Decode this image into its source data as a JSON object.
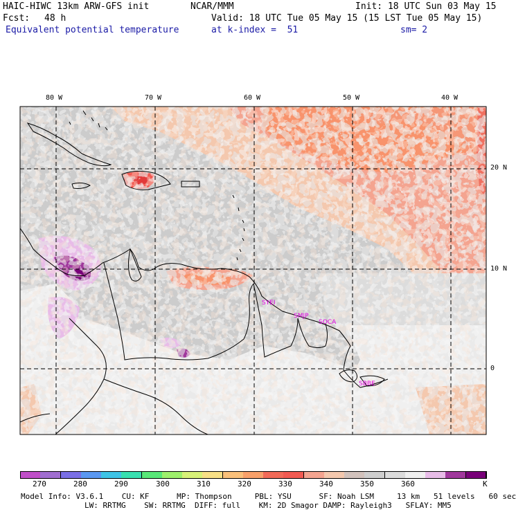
{
  "header": {
    "model": "HAIC-HIWC 13km ARW-GFS init",
    "org": "NCAR/MMM",
    "init": "Init: 18 UTC Sun 03 May 15",
    "fcst_label": "Fcst:",
    "fcst_value": "48 h",
    "valid": "Valid: 18 UTC Tue 05 May 15 (15 LST Tue 05 May 15)",
    "field": "Equivalent potential temperature",
    "level": "at k-index =  51",
    "smooth": "sm= 2"
  },
  "map": {
    "lon_labels": [
      "80 W",
      "70 W",
      "60 W",
      "50 W",
      "40 W"
    ],
    "lat_labels": [
      "20 N",
      "10 N",
      "0"
    ],
    "stations": [
      "SYEI",
      "SMJP",
      "SOCA",
      "SBBE"
    ]
  },
  "colorbar": {
    "colors": [
      "#c04fc8",
      "#a06ed0",
      "#7a6fe6",
      "#5a98f2",
      "#3ec4e6",
      "#38e0b0",
      "#58e878",
      "#9ef06c",
      "#d8f278",
      "#f8e086",
      "#fac07a",
      "#f8a06a",
      "#f26a58",
      "#f25a52",
      "#f4a490",
      "#f4c8ae",
      "#d2c2bc",
      "#cecece",
      "#dcdcdc",
      "#f0f0f0",
      "#e8bce8",
      "#a0389c",
      "#780078"
    ],
    "labels": [
      "270",
      "280",
      "290",
      "300",
      "310",
      "320",
      "330",
      "340",
      "350",
      "360"
    ],
    "unit": "K"
  },
  "footer": {
    "line1": "Model Info: V3.6.1    CU: KF      MP: Thompson     PBL: YSU      SF: Noah LSM     13 km   51 levels   60 sec",
    "line2": "LW: RRTMG    SW: RRTMG  DIFF: full    KM: 2D Smagor DAMP: Rayleigh3   SFLAY: MM5"
  }
}
